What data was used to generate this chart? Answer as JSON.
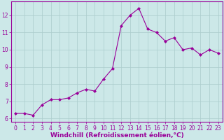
{
  "x": [
    0,
    1,
    2,
    3,
    4,
    5,
    6,
    7,
    8,
    9,
    10,
    11,
    12,
    13,
    14,
    15,
    16,
    17,
    18,
    19,
    20,
    21,
    22,
    23
  ],
  "y": [
    6.3,
    6.3,
    6.2,
    6.8,
    7.1,
    7.1,
    7.2,
    7.5,
    7.7,
    7.6,
    8.3,
    8.9,
    11.4,
    12.0,
    12.4,
    11.2,
    11.0,
    10.5,
    10.7,
    10.0,
    10.1,
    9.7,
    10.0,
    9.8
  ],
  "line_color": "#990099",
  "marker": "D",
  "marker_size": 2,
  "bg_color": "#cce8e8",
  "grid_color": "#aacccc",
  "xlabel": "Windchill (Refroidissement éolien,°C)",
  "xlabel_color": "#990099",
  "xlim": [
    -0.5,
    23.5
  ],
  "ylim": [
    5.8,
    12.8
  ],
  "yticks": [
    6,
    7,
    8,
    9,
    10,
    11,
    12
  ],
  "xticks": [
    0,
    1,
    2,
    3,
    4,
    5,
    6,
    7,
    8,
    9,
    10,
    11,
    12,
    13,
    14,
    15,
    16,
    17,
    18,
    19,
    20,
    21,
    22,
    23
  ],
  "tick_color": "#990099",
  "tick_label_size": 5.5,
  "xlabel_size": 6.5,
  "spine_color": "#990099",
  "line_width": 0.8
}
